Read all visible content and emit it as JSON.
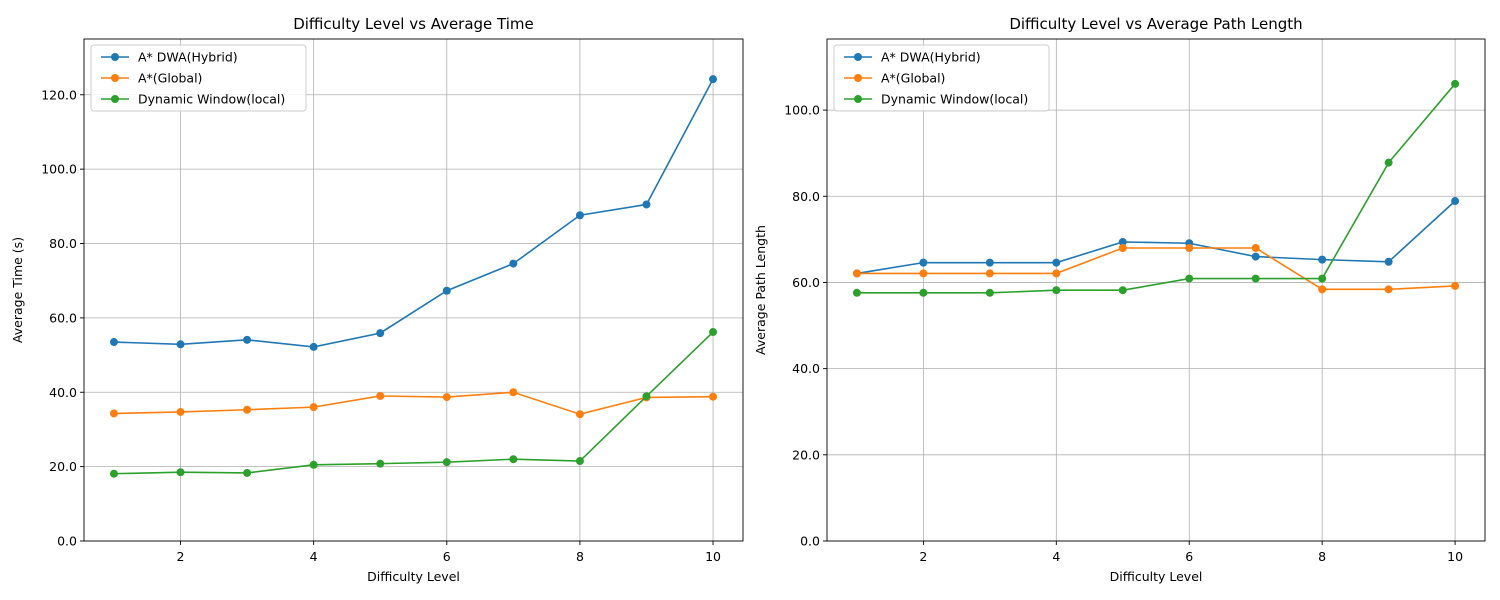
{
  "colors": {
    "series1": "#1f77b4",
    "series2": "#ff7f0e",
    "series3": "#2ca02c",
    "grid": "#b0b0b0"
  },
  "chart_data": [
    {
      "type": "line",
      "title": "Difficulty Level vs Average Time",
      "xlabel": "Difficulty Level",
      "ylabel": "Average Time (s)",
      "x": [
        1,
        2,
        3,
        4,
        5,
        6,
        7,
        8,
        9,
        10
      ],
      "xlim": [
        0.55,
        10.45
      ],
      "ylim": [
        0,
        135
      ],
      "xticks": [
        2,
        4,
        6,
        8,
        10
      ],
      "yticks": [
        0,
        20,
        40,
        60,
        80,
        100,
        120
      ],
      "ytick_labels": [
        "0.0",
        "20.0",
        "40.0",
        "60.0",
        "80.0",
        "100.0",
        "120.0"
      ],
      "grid": true,
      "legend": "top-left",
      "series": [
        {
          "name": "A* DWA(Hybrid)",
          "values": [
            53.5,
            52.9,
            54.1,
            52.2,
            55.9,
            67.3,
            74.6,
            87.6,
            90.5,
            124.2
          ]
        },
        {
          "name": "A*(Global)",
          "values": [
            34.3,
            34.7,
            35.3,
            36.0,
            39.0,
            38.7,
            40.0,
            34.1,
            38.6,
            38.8
          ]
        },
        {
          "name": "Dynamic Window(local)",
          "values": [
            18.1,
            18.5,
            18.3,
            20.5,
            20.8,
            21.2,
            22.0,
            21.5,
            38.9,
            56.2
          ]
        }
      ]
    },
    {
      "type": "line",
      "title": "Difficulty Level vs Average Path Length",
      "xlabel": "Difficulty Level",
      "ylabel": "Average Path Length",
      "x": [
        1,
        2,
        3,
        4,
        5,
        6,
        7,
        8,
        9,
        10
      ],
      "xlim": [
        0.55,
        10.45
      ],
      "ylim": [
        0,
        116.5
      ],
      "xticks": [
        2,
        4,
        6,
        8,
        10
      ],
      "yticks": [
        0,
        20,
        40,
        60,
        80,
        100
      ],
      "ytick_labels": [
        "0.0",
        "20.0",
        "40.0",
        "60.0",
        "80.0",
        "100.0"
      ],
      "grid": true,
      "legend": "top-left",
      "series": [
        {
          "name": "A* DWA(Hybrid)",
          "values": [
            62.1,
            64.6,
            64.6,
            64.6,
            69.4,
            69.1,
            66.0,
            65.3,
            64.8,
            78.9
          ]
        },
        {
          "name": "A*(Global)",
          "values": [
            62.1,
            62.1,
            62.1,
            62.1,
            68.0,
            68.0,
            68.0,
            58.4,
            58.4,
            59.2
          ]
        },
        {
          "name": "Dynamic Window(local)",
          "values": [
            57.6,
            57.6,
            57.6,
            58.2,
            58.2,
            60.9,
            60.9,
            60.9,
            87.8,
            106.1
          ]
        }
      ]
    }
  ]
}
